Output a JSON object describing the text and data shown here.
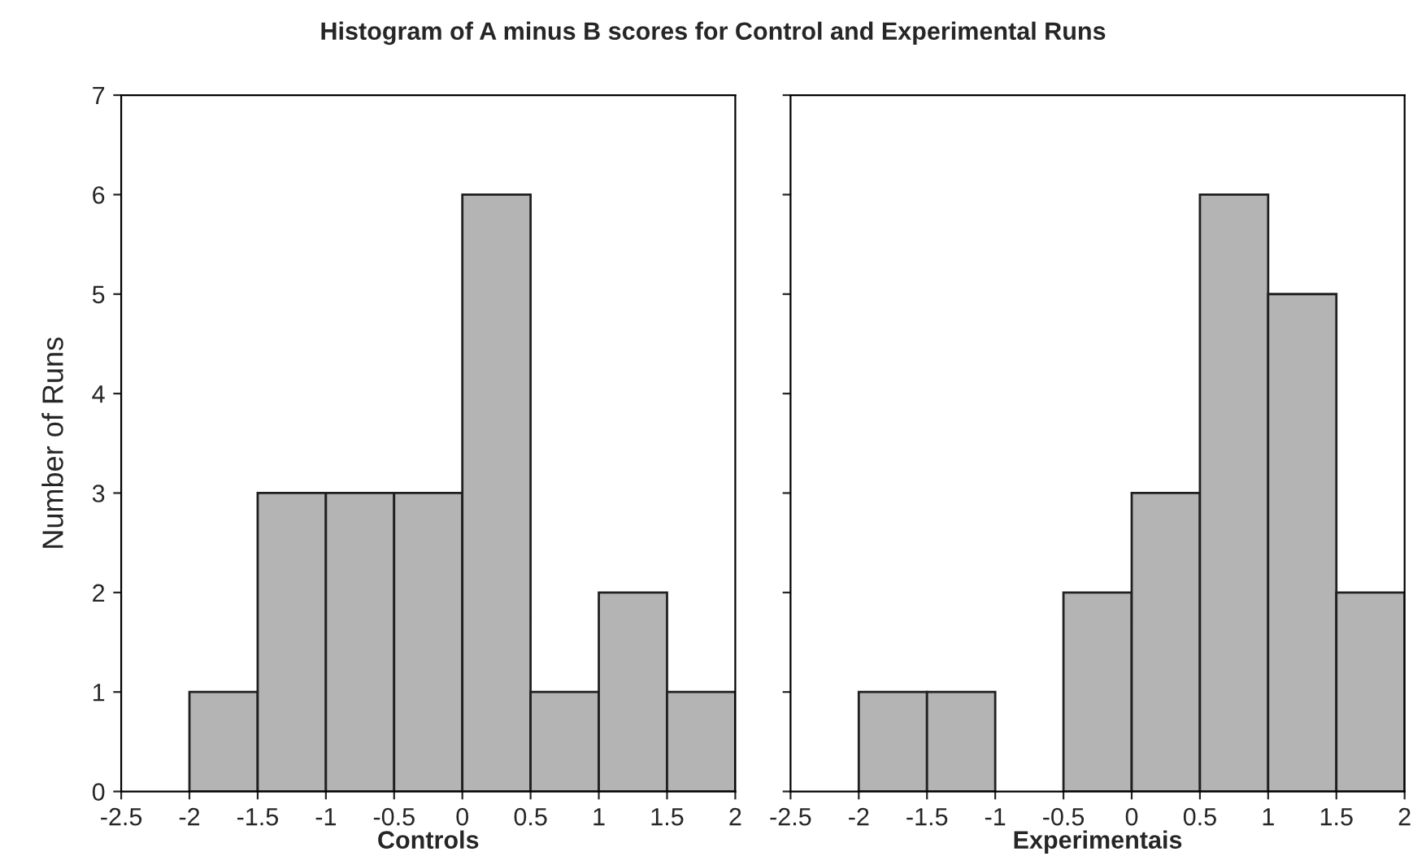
{
  "chart_data": [
    {
      "type": "histogram",
      "title": "Histogram of A minus B scores for Control and Experimental Runs",
      "xlabel": "Controls",
      "ylabel": "Number of Runs",
      "bins": [
        -2.5,
        -2,
        -1.5,
        -1,
        -0.5,
        0,
        0.5,
        1,
        1.5,
        2
      ],
      "values": [
        0,
        1,
        3,
        3,
        3,
        6,
        1,
        2,
        1
      ],
      "color": "#b4b4b4",
      "xlim": [
        -2.5,
        2
      ],
      "xticks": [
        -2.5,
        -2,
        -1.5,
        -1,
        -0.5,
        0,
        0.5,
        1,
        1.5,
        2
      ],
      "ylim": [
        0,
        7
      ],
      "yticks": [
        0,
        1,
        2,
        3,
        4,
        5,
        6,
        7
      ],
      "grid": false
    },
    {
      "type": "histogram",
      "xlabel": "Experimentais",
      "bins": [
        -2.5,
        -2,
        -1.5,
        -1,
        -0.5,
        0,
        0.5,
        1,
        1.5,
        2
      ],
      "values": [
        0,
        1,
        1,
        0,
        2,
        3,
        6,
        5,
        2
      ],
      "color": "#b4b4b4",
      "xlim": [
        -2.5,
        2
      ],
      "xticks": [
        -2.5,
        -2,
        -1.5,
        -1,
        -0.5,
        0,
        0.5,
        1,
        1.5,
        2
      ],
      "ylim": [
        0,
        7
      ],
      "yticks": [
        0,
        1,
        2,
        3,
        4,
        5,
        6,
        7
      ],
      "grid": false,
      "tick_labels": "x"
    }
  ]
}
